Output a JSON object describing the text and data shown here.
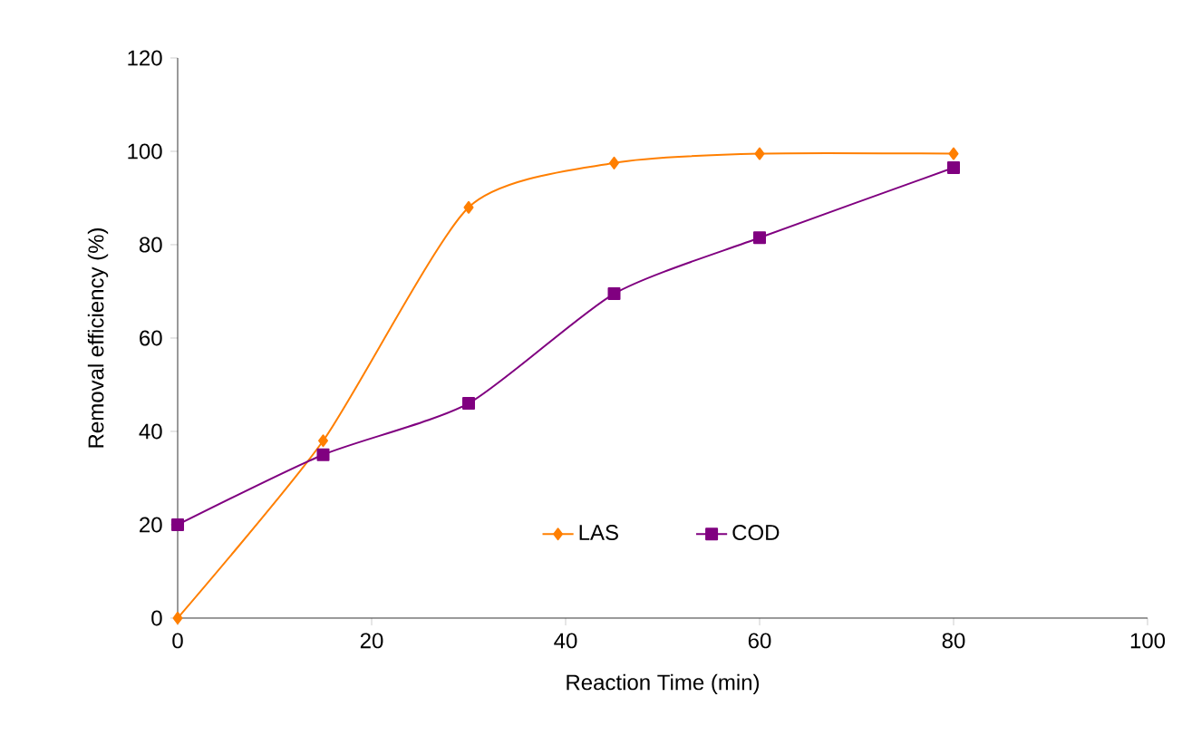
{
  "chart_data": {
    "type": "line",
    "xlabel": "Reaction Time (min)",
    "ylabel": "Removal efficiency (%)",
    "xlim": [
      0,
      100
    ],
    "xticks": [
      0,
      20,
      40,
      60,
      80,
      100
    ],
    "ylim": [
      0,
      120
    ],
    "yticks": [
      0,
      20,
      40,
      60,
      80,
      100,
      120
    ],
    "grid": false,
    "legend": "bottom",
    "series": [
      {
        "name": "LAS",
        "color": "#ff7f00",
        "marker": "diamond",
        "x": [
          0,
          15,
          30,
          45,
          60,
          80
        ],
        "values": [
          0,
          38,
          88,
          97.5,
          99.5,
          99.5
        ]
      },
      {
        "name": "COD",
        "color": "#800080",
        "marker": "square",
        "x": [
          0,
          15,
          30,
          45,
          60,
          80
        ],
        "values": [
          20,
          35,
          46,
          69.5,
          81.5,
          96.5
        ]
      }
    ]
  }
}
